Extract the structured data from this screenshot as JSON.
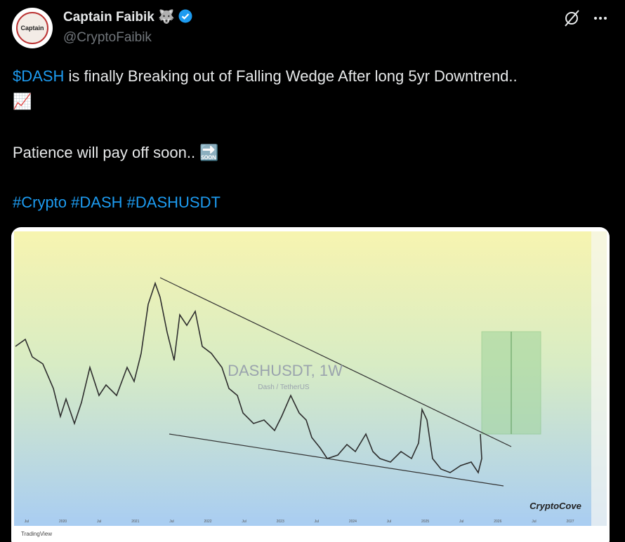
{
  "header": {
    "name": "Captain Faibik",
    "badge": "🐺",
    "handle": "@CryptoFaibik"
  },
  "tweet": {
    "cashtag": "$DASH",
    "line1": "is finally Breaking out of Falling Wedge After long 5yr Downtrend..",
    "line1_emoji": "📈",
    "line2": "Patience will pay off soon..",
    "line2_emoji": "🔜",
    "hashtags": [
      "#Crypto",
      "#DASH",
      "#DASHUSDT"
    ]
  },
  "image": {
    "watermark": "DASHUSDT, 1W",
    "subtitle": "Dash / TetherUS",
    "brand": "CryptoCove",
    "footer": "TradingView",
    "x_labels": [
      "Jul",
      "2020",
      "Jul",
      "2021",
      "Jul",
      "2022",
      "Jul",
      "2023",
      "Jul",
      "2024",
      "Jul",
      "2025",
      "Jul",
      "2026",
      "Jul",
      "2027"
    ]
  }
}
